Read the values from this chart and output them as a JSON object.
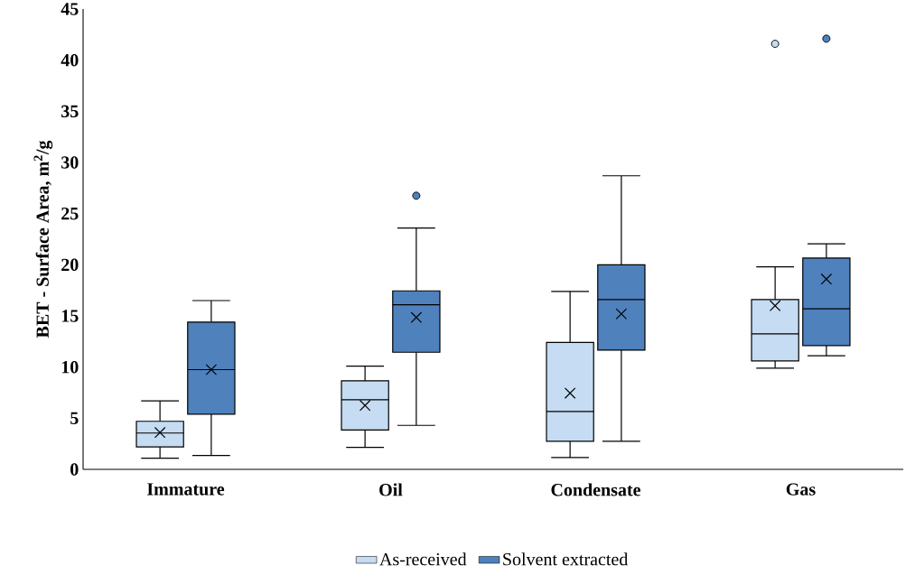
{
  "chart_data": {
    "type": "box",
    "ylabel": "BET - Surface Area, m$^{2}$/g",
    "categories": [
      "Immature",
      "Oil",
      "Condensate",
      "Gas"
    ],
    "ylim": [
      0,
      45
    ],
    "yticks": [
      0,
      5,
      10,
      15,
      20,
      25,
      30,
      35,
      40,
      45
    ],
    "legend": "bottom",
    "series": [
      {
        "name": "As-received",
        "color": "#c5dcf2",
        "boxes": [
          {
            "low": 1.1,
            "q1": 2.2,
            "median": 3.55,
            "q3": 4.7,
            "high": 6.7,
            "mean": 3.6
          },
          {
            "low": 2.15,
            "q1": 3.85,
            "median": 6.8,
            "q3": 8.65,
            "high": 10.1,
            "mean": 6.25
          },
          {
            "low": 1.15,
            "q1": 2.75,
            "median": 5.65,
            "q3": 12.4,
            "high": 17.4,
            "mean": 7.45
          },
          {
            "low": 9.9,
            "q1": 10.6,
            "median": 13.25,
            "q3": 16.6,
            "high": 19.8,
            "mean": 16.0,
            "outliers": [
              41.6
            ]
          }
        ]
      },
      {
        "name": "Solvent extracted",
        "color": "#4f81bd",
        "boxes": [
          {
            "low": 1.35,
            "q1": 5.4,
            "median": 9.75,
            "q3": 14.4,
            "high": 16.5,
            "mean": 9.75
          },
          {
            "low": 4.3,
            "q1": 11.45,
            "median": 16.1,
            "q3": 17.45,
            "high": 23.6,
            "mean": 14.85,
            "outliers": [
              26.75
            ]
          },
          {
            "low": 2.75,
            "q1": 11.65,
            "median": 16.6,
            "q3": 20.0,
            "high": 28.7,
            "mean": 15.2
          },
          {
            "low": 11.1,
            "q1": 12.1,
            "median": 15.7,
            "q3": 20.65,
            "high": 22.05,
            "mean": 18.6,
            "outliers": [
              42.1
            ]
          }
        ]
      }
    ]
  }
}
